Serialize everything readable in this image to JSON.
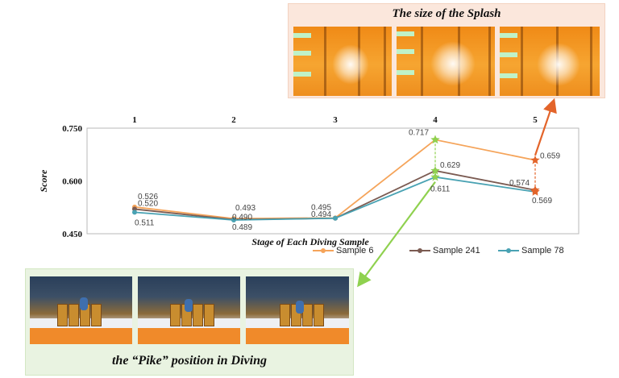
{
  "splash_panel": {
    "title": "The size of the Splash"
  },
  "pike_panel": {
    "title": "the “Pike” position in Diving"
  },
  "chart_data": {
    "type": "line",
    "categories": [
      "1",
      "2",
      "3",
      "4",
      "5"
    ],
    "ylabel": "Score",
    "xlabel": "Stage of Each Diving Sample",
    "ylim": [
      0.45,
      0.75
    ],
    "yticks": [
      "0.750",
      "0.600",
      "0.450"
    ],
    "ytick_values": [
      0.75,
      0.6,
      0.45
    ],
    "grid": false,
    "legend_position": "bottom-right",
    "series": [
      {
        "name": "Sample 6",
        "color": "#f5a45a",
        "values": [
          0.526,
          0.493,
          0.495,
          0.717,
          0.659
        ],
        "labels": [
          "0.526",
          "0.493",
          "0.495",
          "0.717",
          "0.659"
        ]
      },
      {
        "name": "Sample 241",
        "color": "#7b5b52",
        "values": [
          0.52,
          0.49,
          0.494,
          0.629,
          0.574
        ],
        "labels": [
          "0.520",
          "0.490",
          "0.494",
          "0.629",
          "0.574"
        ]
      },
      {
        "name": "Sample 78",
        "color": "#49a2b3",
        "values": [
          0.511,
          0.489,
          0.494,
          0.611,
          0.569
        ],
        "labels": [
          "0.511",
          "0.489",
          "",
          "0.611",
          "0.569"
        ]
      }
    ],
    "highlight_colors": {
      "stage4": "#8fd14f",
      "stage5": "#e3642a"
    }
  }
}
